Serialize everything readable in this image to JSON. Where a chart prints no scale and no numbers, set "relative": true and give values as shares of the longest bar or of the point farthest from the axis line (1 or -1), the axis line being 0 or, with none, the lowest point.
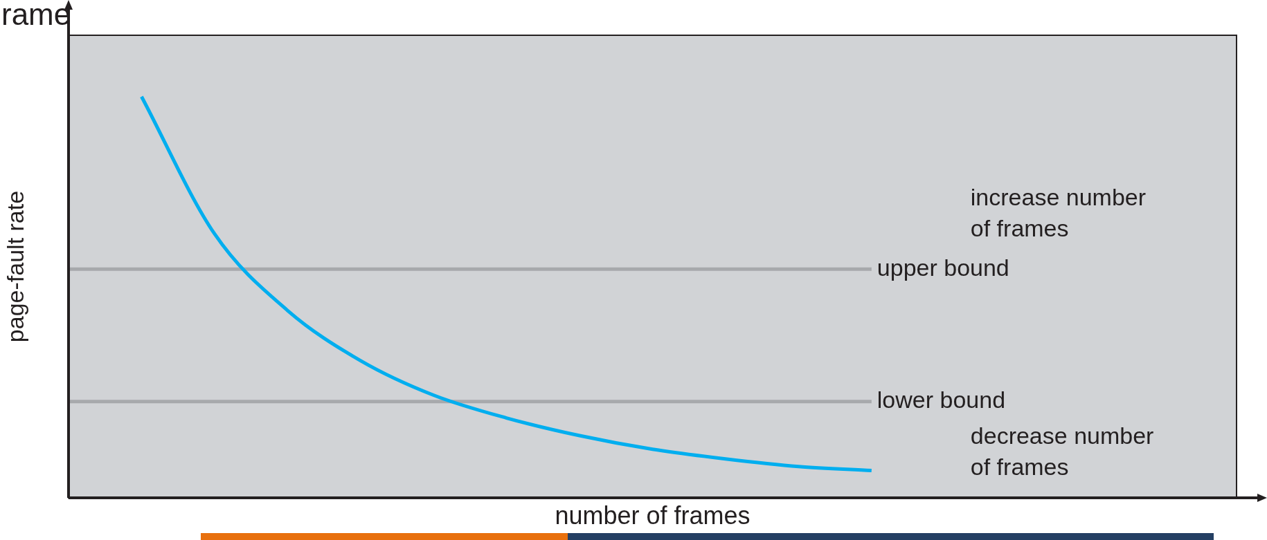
{
  "chart_data": {
    "type": "line",
    "title": "rame",
    "xlabel": "number of frames",
    "ylabel": "page-fault rate",
    "relative": true,
    "categories": [
      null,
      null,
      null,
      null,
      null,
      null,
      null,
      null,
      null,
      null,
      null,
      null,
      null,
      null,
      null,
      null,
      null
    ],
    "series": [
      {
        "color": "#00aeef",
        "values": [
          null,
          1,
          0.658,
          0.467,
          0.342,
          0.256,
          0.199,
          0.155,
          0.121,
          0.097,
          0.078,
          0.068,
          null,
          null,
          null,
          null,
          null
        ]
      }
    ],
    "ref_lines": [
      {
        "axis": "y",
        "value": 0.57,
        "label": "upper bound",
        "color": "#a7a9ac"
      },
      {
        "axis": "y",
        "value": 0.24,
        "label": "lower bound",
        "color": "#a7a9ac"
      }
    ],
    "annotations": [
      "increase number of frames",
      "decrease number of frames"
    ],
    "marker": "none",
    "grid": false,
    "legend": false
  }
}
